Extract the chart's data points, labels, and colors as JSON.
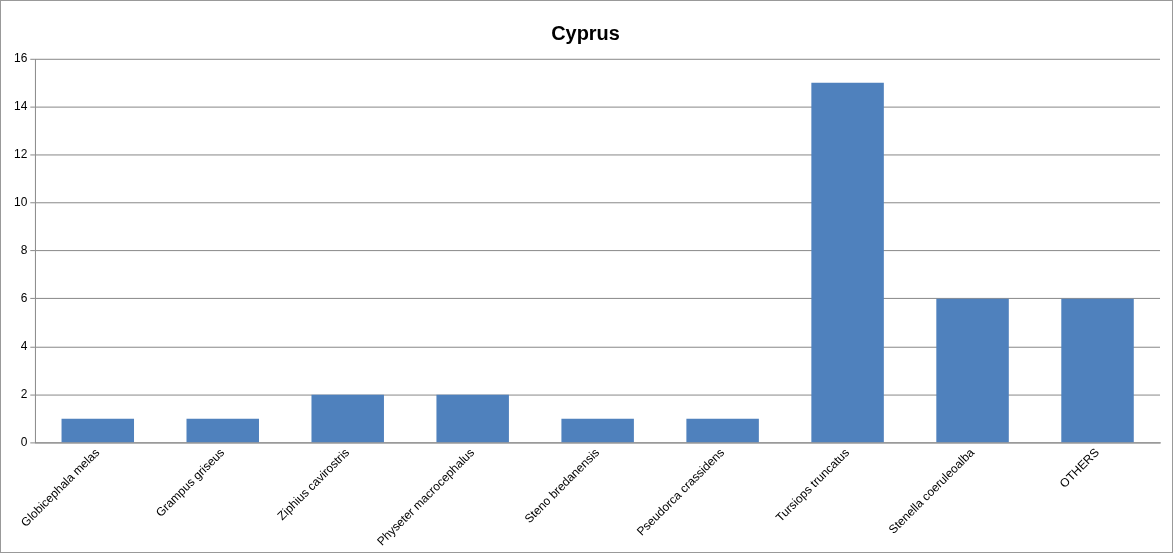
{
  "chart_data": {
    "type": "bar",
    "title": "Cyprus",
    "categories": [
      "Globicephala melas",
      "Grampus griseus",
      "Ziphius cavirostris",
      "Physeter macrocephalus",
      "Steno bredanensis",
      "Pseudorca crassidens",
      "Tursiops truncatus",
      "Stenella coeruleoalba",
      "OTHERS"
    ],
    "values": [
      1,
      1,
      2,
      2,
      1,
      1,
      15,
      6,
      6
    ],
    "color": "#4f81bd",
    "ylim": [
      0,
      16
    ],
    "yticks": [
      0,
      2,
      4,
      6,
      8,
      10,
      12,
      14,
      16
    ],
    "grid": "y"
  }
}
